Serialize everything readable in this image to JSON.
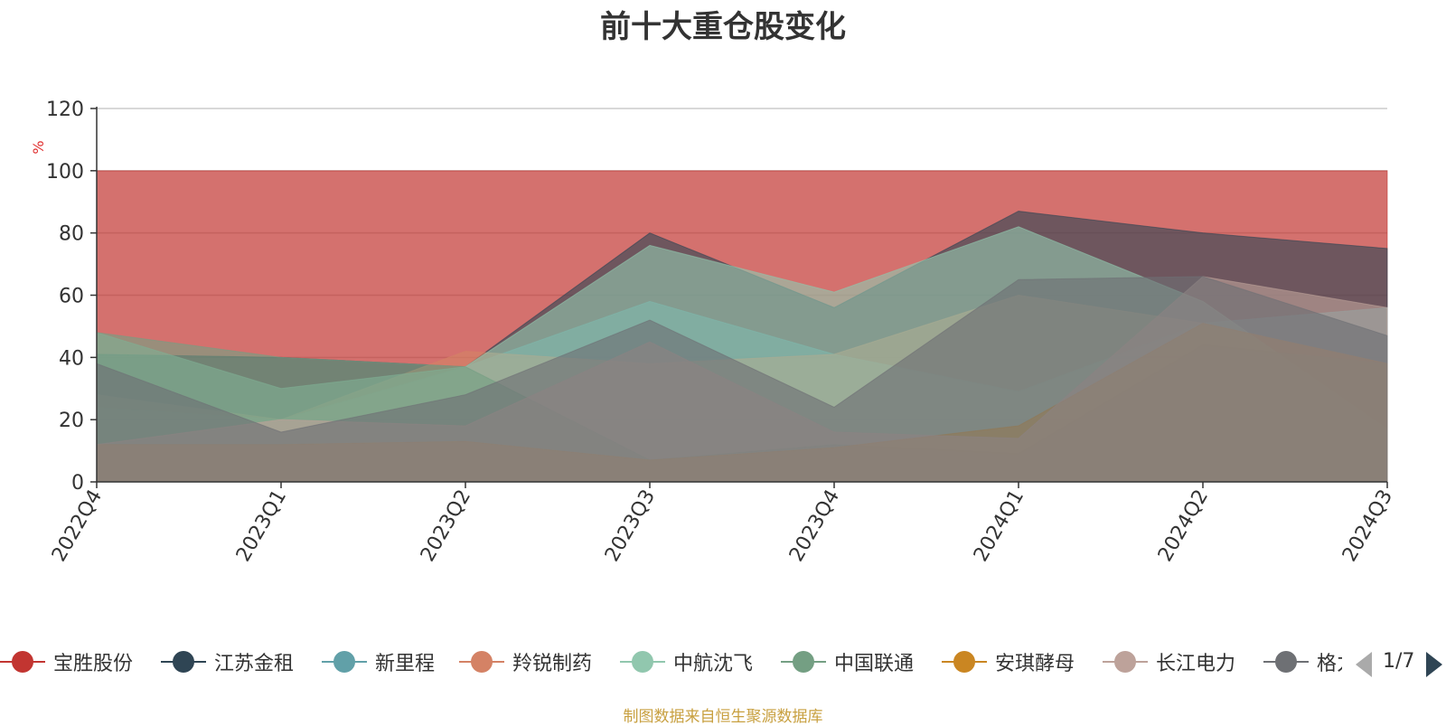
{
  "chart_data": {
    "type": "area",
    "title": "前十大重仓股变化",
    "ylabel": "%",
    "ylim": [
      0,
      120
    ],
    "yticks": [
      0,
      20,
      40,
      60,
      80,
      100,
      120
    ],
    "categories": [
      "2022Q4",
      "2023Q1",
      "2023Q2",
      "2023Q3",
      "2023Q4",
      "2024Q1",
      "2024Q2",
      "2024Q3"
    ],
    "grid": true,
    "legend_position": "bottom",
    "series": [
      {
        "name": "宝胜股份",
        "color": "#c23531",
        "values": [
          100,
          100,
          100,
          100,
          100,
          100,
          100,
          100
        ]
      },
      {
        "name": "江苏金租",
        "color": "#2f4554",
        "values": [
          41,
          40,
          37,
          80,
          56,
          87,
          80,
          75
        ]
      },
      {
        "name": "新里程",
        "color": "#61a0a8",
        "values": [
          24,
          20,
          37,
          58,
          41,
          29,
          51,
          56
        ]
      },
      {
        "name": "羚锐制药",
        "color": "#d48265",
        "values": [
          28,
          20,
          42,
          38,
          41,
          60,
          51,
          38
        ]
      },
      {
        "name": "中航沈飞",
        "color": "#91c7ae",
        "values": [
          48,
          30,
          37,
          76,
          61,
          82,
          58,
          17
        ]
      },
      {
        "name": "中国联通",
        "color": "#749f83",
        "values": [
          48,
          40,
          37,
          7,
          12,
          9,
          44,
          38
        ]
      },
      {
        "name": "安琪酵母",
        "color": "#ca8622",
        "values": [
          12,
          12,
          13,
          7,
          11,
          18,
          51,
          38
        ]
      },
      {
        "name": "长江电力",
        "color": "#bda29a",
        "values": [
          12,
          20,
          18,
          45,
          16,
          14,
          66,
          56
        ]
      },
      {
        "name": "格力电器",
        "color": "#6e7074",
        "values": [
          38,
          16,
          28,
          52,
          24,
          65,
          66,
          47
        ]
      }
    ]
  },
  "legend": {
    "visible_labels": [
      "宝胜股份",
      "江苏金租",
      "新里程",
      "羚锐制药",
      "中航沈飞",
      "中国联通",
      "安琪酵母",
      "长江电力",
      "格力电器"
    ],
    "page": "1/7"
  },
  "source_note": "制图数据来自恒生聚源数据库"
}
